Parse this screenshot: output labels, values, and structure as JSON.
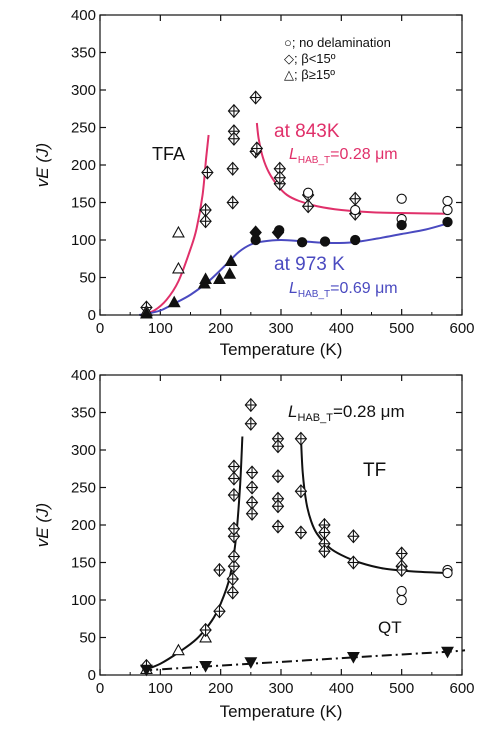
{
  "chart_data": [
    {
      "type": "scatter",
      "xlabel": "Temperature (K)",
      "ylabel": "vE (J)",
      "xlim": [
        0,
        600
      ],
      "ylim": [
        0,
        400
      ],
      "xticks": [
        0,
        100,
        200,
        300,
        400,
        500,
        600
      ],
      "yticks": [
        0,
        50,
        100,
        150,
        200,
        250,
        300,
        350,
        400
      ],
      "legend": {
        "placement": "top-right",
        "entries": [
          {
            "marker": "circle",
            "label": "○; no delamination"
          },
          {
            "marker": "diamond",
            "label": "◇; β<15º"
          },
          {
            "marker": "triangle",
            "label": "△; β≥15º"
          }
        ]
      },
      "annotations": {
        "tfa": "TFA",
        "at_843": "at 843K",
        "l_843_main": "L",
        "l_843_sub": "HAB_T",
        "l_843_value": "=0.28 μm",
        "at_973": "at 973 K",
        "l_973_main": "L",
        "l_973_sub": "HAB_T",
        "l_973_value": "=0.69 μm"
      },
      "colors": {
        "pink": "#e0306a",
        "blue": "#4a4ac0"
      },
      "series": [
        {
          "group": "843K",
          "points": [
            {
              "x": 77,
              "y": 10,
              "m": "diamond"
            },
            {
              "x": 77,
              "y": 5,
              "m": "triangle"
            },
            {
              "x": 130,
              "y": 62,
              "m": "triangle"
            },
            {
              "x": 130,
              "y": 110,
              "m": "triangle"
            },
            {
              "x": 175,
              "y": 140,
              "m": "diamond"
            },
            {
              "x": 175,
              "y": 125,
              "m": "diamond"
            },
            {
              "x": 178,
              "y": 190,
              "m": "diamond"
            },
            {
              "x": 220,
              "y": 195,
              "m": "diamond"
            },
            {
              "x": 220,
              "y": 150,
              "m": "diamond"
            },
            {
              "x": 222,
              "y": 245,
              "m": "diamond"
            },
            {
              "x": 222,
              "y": 272,
              "m": "diamond"
            },
            {
              "x": 222,
              "y": 235,
              "m": "diamond"
            },
            {
              "x": 258,
              "y": 290,
              "m": "diamond"
            },
            {
              "x": 258,
              "y": 218,
              "m": "diamond"
            },
            {
              "x": 260,
              "y": 222,
              "m": "diamond"
            },
            {
              "x": 298,
              "y": 195,
              "m": "diamond"
            },
            {
              "x": 298,
              "y": 175,
              "m": "diamond"
            },
            {
              "x": 298,
              "y": 183,
              "m": "diamond"
            },
            {
              "x": 345,
              "y": 160,
              "m": "diamond"
            },
            {
              "x": 345,
              "y": 145,
              "m": "diamond"
            },
            {
              "x": 345,
              "y": 163,
              "m": "circle"
            },
            {
              "x": 423,
              "y": 135,
              "m": "diamond"
            },
            {
              "x": 423,
              "y": 155,
              "m": "diamond"
            },
            {
              "x": 423,
              "y": 140,
              "m": "circle"
            },
            {
              "x": 500,
              "y": 128,
              "m": "circle"
            },
            {
              "x": 500,
              "y": 155,
              "m": "circle"
            },
            {
              "x": 576,
              "y": 152,
              "m": "circle"
            },
            {
              "x": 576,
              "y": 140,
              "m": "circle"
            }
          ]
        },
        {
          "group": "973K",
          "points": [
            {
              "x": 77,
              "y": 2,
              "m": "triangle_filled"
            },
            {
              "x": 123,
              "y": 17,
              "m": "triangle_filled"
            },
            {
              "x": 173,
              "y": 42,
              "m": "triangle_filled"
            },
            {
              "x": 175,
              "y": 48,
              "m": "triangle_filled"
            },
            {
              "x": 198,
              "y": 48,
              "m": "triangle_filled"
            },
            {
              "x": 215,
              "y": 55,
              "m": "triangle_filled"
            },
            {
              "x": 217,
              "y": 72,
              "m": "triangle_filled"
            },
            {
              "x": 258,
              "y": 110,
              "m": "diamond_filled"
            },
            {
              "x": 258,
              "y": 100,
              "m": "circle_filled"
            },
            {
              "x": 295,
              "y": 110,
              "m": "diamond_filled"
            },
            {
              "x": 297,
              "y": 113,
              "m": "circle_filled"
            },
            {
              "x": 335,
              "y": 97,
              "m": "circle_filled"
            },
            {
              "x": 373,
              "y": 98,
              "m": "circle_filled"
            },
            {
              "x": 423,
              "y": 100,
              "m": "circle_filled"
            },
            {
              "x": 500,
              "y": 120,
              "m": "circle_filled"
            },
            {
              "x": 576,
              "y": 124,
              "m": "circle_filled"
            }
          ]
        }
      ],
      "fits": [
        {
          "group": "843K",
          "color": "#e0306a",
          "x": [
            77,
            90,
            110,
            130,
            150,
            160,
            170,
            176,
            180
          ],
          "y": [
            3,
            6,
            20,
            45,
            88,
            115,
            160,
            210,
            240
          ]
        },
        {
          "group": "843K",
          "color": "#e0306a",
          "x": [
            260,
            263,
            270,
            280,
            295,
            310,
            330,
            360,
            400,
            450,
            500,
            576
          ],
          "y": [
            256,
            235,
            210,
            190,
            172,
            160,
            152,
            145,
            140,
            137,
            136,
            135
          ]
        },
        {
          "group": "973K",
          "color": "#4a4ac0",
          "x": [
            65,
            80,
            100,
            120,
            150,
            180,
            210,
            230,
            250,
            270,
            300,
            340,
            380,
            420,
            460,
            500,
            540,
            576
          ],
          "y": [
            0,
            2,
            6,
            14,
            27,
            45,
            68,
            84,
            94,
            98,
            100,
            98,
            96,
            97,
            102,
            108,
            114,
            122
          ]
        }
      ]
    },
    {
      "type": "scatter",
      "xlabel": "Temperature (K)",
      "ylabel": "vE (J)",
      "xlim": [
        0,
        600
      ],
      "ylim": [
        0,
        400
      ],
      "xticks": [
        0,
        100,
        200,
        300,
        400,
        500,
        600
      ],
      "yticks": [
        0,
        50,
        100,
        150,
        200,
        250,
        300,
        350,
        400
      ],
      "annotations": {
        "l_main": "L",
        "l_sub": "HAB_T",
        "l_value": "=0.28 μm",
        "tf": "TF",
        "qt": "QT"
      },
      "series": [
        {
          "group": "TF",
          "points": [
            {
              "x": 77,
              "y": 8,
              "m": "triangle"
            },
            {
              "x": 77,
              "y": 12,
              "m": "diamond"
            },
            {
              "x": 130,
              "y": 33,
              "m": "triangle"
            },
            {
              "x": 175,
              "y": 50,
              "m": "triangle"
            },
            {
              "x": 175,
              "y": 60,
              "m": "diamond"
            },
            {
              "x": 198,
              "y": 85,
              "m": "diamond"
            },
            {
              "x": 198,
              "y": 140,
              "m": "diamond"
            },
            {
              "x": 220,
              "y": 110,
              "m": "diamond"
            },
            {
              "x": 220,
              "y": 128,
              "m": "diamond"
            },
            {
              "x": 222,
              "y": 145,
              "m": "diamond"
            },
            {
              "x": 222,
              "y": 158,
              "m": "diamond"
            },
            {
              "x": 222,
              "y": 185,
              "m": "diamond"
            },
            {
              "x": 222,
              "y": 195,
              "m": "diamond"
            },
            {
              "x": 222,
              "y": 240,
              "m": "diamond"
            },
            {
              "x": 222,
              "y": 262,
              "m": "diamond"
            },
            {
              "x": 222,
              "y": 278,
              "m": "diamond"
            },
            {
              "x": 250,
              "y": 360,
              "m": "diamond"
            },
            {
              "x": 250,
              "y": 335,
              "m": "diamond"
            },
            {
              "x": 252,
              "y": 270,
              "m": "diamond"
            },
            {
              "x": 252,
              "y": 250,
              "m": "diamond"
            },
            {
              "x": 252,
              "y": 230,
              "m": "diamond"
            },
            {
              "x": 252,
              "y": 215,
              "m": "diamond"
            },
            {
              "x": 295,
              "y": 315,
              "m": "diamond"
            },
            {
              "x": 295,
              "y": 305,
              "m": "diamond"
            },
            {
              "x": 295,
              "y": 265,
              "m": "diamond"
            },
            {
              "x": 295,
              "y": 235,
              "m": "diamond"
            },
            {
              "x": 295,
              "y": 225,
              "m": "diamond"
            },
            {
              "x": 295,
              "y": 198,
              "m": "diamond"
            },
            {
              "x": 333,
              "y": 315,
              "m": "diamond"
            },
            {
              "x": 333,
              "y": 245,
              "m": "diamond"
            },
            {
              "x": 333,
              "y": 190,
              "m": "diamond"
            },
            {
              "x": 372,
              "y": 200,
              "m": "diamond"
            },
            {
              "x": 372,
              "y": 190,
              "m": "diamond"
            },
            {
              "x": 372,
              "y": 175,
              "m": "diamond"
            },
            {
              "x": 372,
              "y": 165,
              "m": "diamond"
            },
            {
              "x": 420,
              "y": 185,
              "m": "diamond"
            },
            {
              "x": 420,
              "y": 150,
              "m": "diamond"
            },
            {
              "x": 500,
              "y": 162,
              "m": "diamond"
            },
            {
              "x": 500,
              "y": 145,
              "m": "diamond"
            },
            {
              "x": 500,
              "y": 140,
              "m": "diamond"
            },
            {
              "x": 500,
              "y": 112,
              "m": "circle"
            },
            {
              "x": 500,
              "y": 100,
              "m": "circle"
            },
            {
              "x": 576,
              "y": 140,
              "m": "circle"
            },
            {
              "x": 576,
              "y": 136,
              "m": "circle"
            }
          ]
        },
        {
          "group": "QT",
          "points": [
            {
              "x": 77,
              "y": 7,
              "m": "tri_down_filled"
            },
            {
              "x": 175,
              "y": 12,
              "m": "tri_down_filled"
            },
            {
              "x": 250,
              "y": 17,
              "m": "tri_down_filled"
            },
            {
              "x": 420,
              "y": 24,
              "m": "tri_down_filled"
            },
            {
              "x": 576,
              "y": 31,
              "m": "tri_down_filled"
            }
          ]
        }
      ],
      "fits": [
        {
          "group": "TF",
          "color": "#111111",
          "x": [
            75,
            100,
            130,
            160,
            185,
            200,
            215,
            225,
            232,
            236
          ],
          "y": [
            7,
            15,
            30,
            48,
            72,
            95,
            130,
            180,
            250,
            318
          ]
        },
        {
          "group": "TF",
          "color": "#111111",
          "x": [
            333,
            336,
            342,
            350,
            360,
            380,
            400,
            430,
            470,
            520,
            576
          ],
          "y": [
            318,
            270,
            230,
            205,
            188,
            170,
            160,
            150,
            142,
            138,
            136
          ]
        },
        {
          "group": "QT",
          "color": "#111111",
          "dash": true,
          "x": [
            70,
            150,
            250,
            350,
            450,
            576,
            605
          ],
          "y": [
            6,
            10,
            15,
            20,
            25,
            31,
            33
          ]
        }
      ]
    }
  ]
}
